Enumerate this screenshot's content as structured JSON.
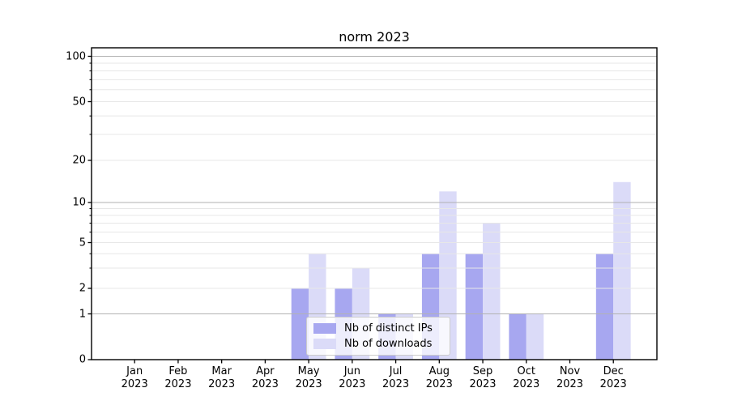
{
  "chart_data": {
    "type": "bar",
    "title": "norm 2023",
    "categories": [
      "Jan 2023",
      "Feb 2023",
      "Mar 2023",
      "Apr 2023",
      "May 2023",
      "Jun 2023",
      "Jul 2023",
      "Aug 2023",
      "Sep 2023",
      "Oct 2023",
      "Nov 2023",
      "Dec 2023"
    ],
    "series": [
      {
        "name": "Nb of distinct IPs",
        "color": "#a7a7f0",
        "values": [
          0,
          0,
          0,
          0,
          2,
          2,
          1,
          4,
          4,
          1,
          0,
          4
        ]
      },
      {
        "name": "Nb of downloads",
        "color": "#dbdbf8",
        "values": [
          0,
          0,
          0,
          0,
          4,
          3,
          1,
          12,
          7,
          1,
          0,
          14
        ]
      }
    ],
    "yaxis": {
      "scale": "symlog",
      "tick_labels": [
        "0",
        "1",
        "2",
        "5",
        "10",
        "20",
        "50",
        "100"
      ],
      "ticks": [
        0,
        1,
        2,
        5,
        10,
        20,
        50,
        100
      ],
      "minor_ticks": [
        3,
        4,
        6,
        7,
        8,
        9,
        30,
        40,
        60,
        70,
        80,
        90
      ],
      "ylim": [
        0,
        115
      ]
    },
    "xlabel": "",
    "ylabel": "",
    "grid": true,
    "legend_position": "lower center",
    "colors": {
      "major_grid": "#b2b2b2",
      "minor_grid": "#e7e7e7",
      "axis": "#000000",
      "text": "#000000"
    }
  }
}
